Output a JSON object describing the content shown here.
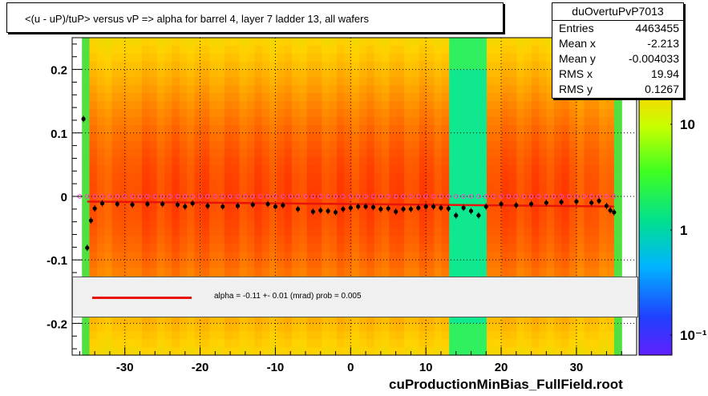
{
  "title": "<(u - uP)/tuP>  versus   vP => alpha for barrel 4, layer 7 ladder 13, all wafers",
  "stats": {
    "name": "duOvertuPvP7013",
    "rows": [
      {
        "label": "Entries",
        "value": "4463455"
      },
      {
        "label": "Mean x",
        "value": "-2.213"
      },
      {
        "label": "Mean y",
        "value": "-0.004033"
      },
      {
        "label": "RMS x",
        "value": "19.94"
      },
      {
        "label": "RMS y",
        "value": "0.1267"
      }
    ]
  },
  "legend": {
    "text": "alpha =   -0.11 +-  0.01 (mrad) prob = 0.005"
  },
  "footer": "cuProductionMinBias_FullField.root",
  "colors": {
    "fit_line": "#e8140c",
    "profile_points": "#000000",
    "profile_points_alt": "#ff44cc"
  },
  "chart_data": {
    "type": "heatmap",
    "xlim": [
      -37,
      38
    ],
    "ylim": [
      -0.25,
      0.25
    ],
    "x_ticks": [
      -30,
      -20,
      -10,
      0,
      10,
      20,
      30
    ],
    "x_tick_labels": [
      "-30",
      "-20",
      "-10",
      "0",
      "10",
      "20",
      "30"
    ],
    "y_ticks": [
      -0.2,
      -0.1,
      0,
      0.1,
      0.2
    ],
    "y_tick_labels": [
      "-0.2",
      "-0.1",
      "0",
      "0.1",
      "0.2"
    ],
    "z_scale": "log",
    "z_ticks": [
      10,
      1,
      0.1
    ],
    "z_tick_labels": [
      "10",
      "1",
      "10⁻¹"
    ],
    "grid": true,
    "fit": {
      "slope": -0.00011,
      "intercept": -0.012,
      "xrange": [
        -35,
        35
      ]
    },
    "profile": {
      "x": [
        -35.5,
        -35,
        -34.5,
        -34,
        -33,
        -31,
        -29,
        -27,
        -25,
        -23,
        -22,
        -21,
        -19,
        -17,
        -15,
        -13,
        -11,
        -10,
        -9,
        -7,
        -5,
        -4,
        -3,
        -2,
        -1,
        0,
        1,
        2,
        3,
        4,
        5,
        6,
        7,
        8,
        9,
        10,
        11,
        12,
        13,
        14,
        15,
        16,
        17,
        18,
        20,
        22,
        24,
        26,
        28,
        30,
        32,
        33,
        34,
        34.5,
        35
      ],
      "y": [
        0.122,
        -0.081,
        -0.038,
        -0.019,
        -0.011,
        -0.012,
        -0.013,
        -0.012,
        -0.012,
        -0.013,
        -0.016,
        -0.011,
        -0.015,
        -0.016,
        -0.015,
        -0.013,
        -0.012,
        -0.016,
        -0.014,
        -0.02,
        -0.024,
        -0.022,
        -0.023,
        -0.025,
        -0.02,
        -0.018,
        -0.016,
        -0.016,
        -0.017,
        -0.02,
        -0.019,
        -0.024,
        -0.02,
        -0.02,
        -0.018,
        -0.016,
        -0.016,
        -0.018,
        -0.019,
        -0.03,
        -0.018,
        -0.023,
        -0.03,
        -0.016,
        -0.012,
        -0.014,
        -0.012,
        -0.01,
        -0.009,
        -0.008,
        -0.01,
        -0.007,
        -0.015,
        -0.022,
        -0.025
      ]
    },
    "profile_alt": {
      "x_start": -36,
      "x_end": 35,
      "x_step": 1,
      "y": 0
    }
  }
}
